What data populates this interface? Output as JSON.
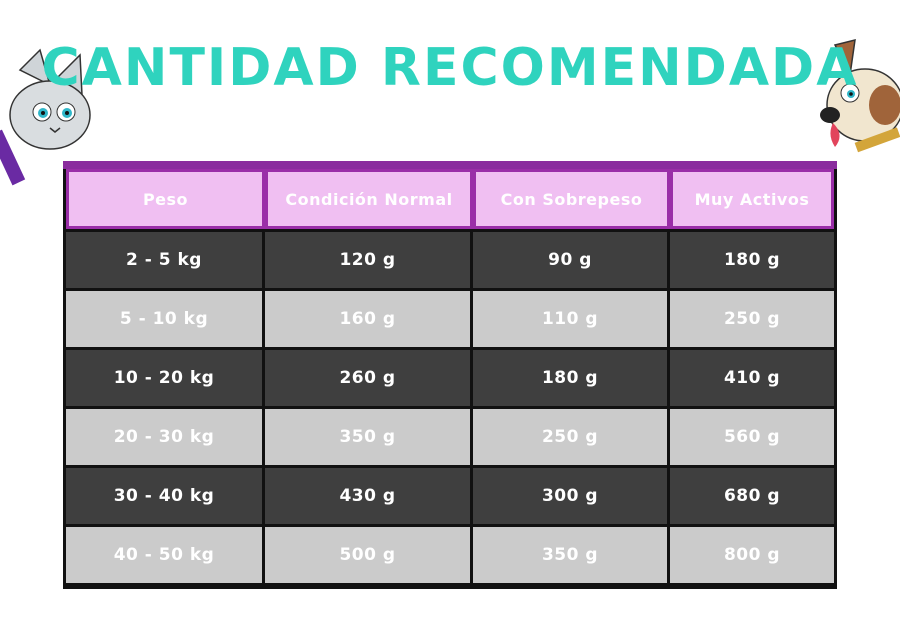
{
  "title": "CANTIDAD RECOMENDADA",
  "colors": {
    "title": "#2fd3be",
    "header_bg": "#f0bff2",
    "header_border": "#9a2ea8",
    "row_dark": "#3f3f3f",
    "row_light": "#cbcbcb"
  },
  "decorations": [
    "cat-illustration",
    "dog-illustration"
  ],
  "table": {
    "headers": [
      "Peso",
      "Condición Normal",
      "Con Sobrepeso",
      "Muy Activos"
    ],
    "rows": [
      [
        "2 - 5 kg",
        "120 g",
        "90 g",
        "180 g"
      ],
      [
        "5 - 10 kg",
        "160 g",
        "110 g",
        "250 g"
      ],
      [
        "10 - 20 kg",
        "260 g",
        "180 g",
        "410 g"
      ],
      [
        "20 - 30 kg",
        "350 g",
        "250 g",
        "560 g"
      ],
      [
        "30 - 40 kg",
        "430 g",
        "300 g",
        "680 g"
      ],
      [
        "40 - 50 kg",
        "500 g",
        "350 g",
        "800 g"
      ]
    ]
  }
}
